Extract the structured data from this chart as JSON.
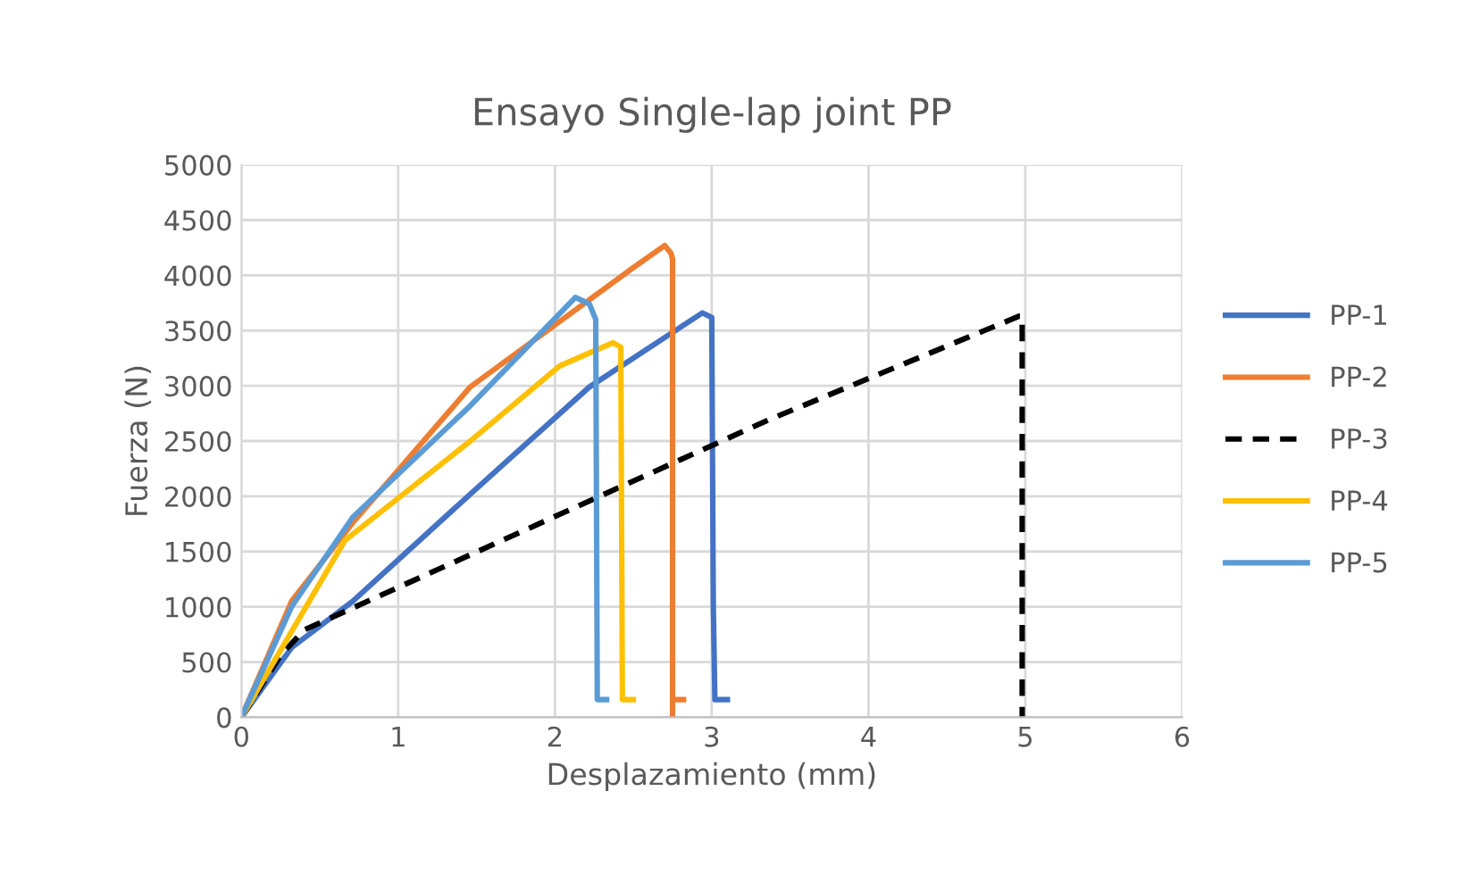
{
  "chart_data": {
    "type": "line",
    "title": "Ensayo Single-lap joint PP",
    "xlabel": "Desplazamiento (mm)",
    "ylabel": "Fuerza (N)",
    "xlim": [
      0,
      6
    ],
    "xticks": [
      0,
      1,
      2,
      3,
      4,
      5,
      6
    ],
    "ylim": [
      0,
      5000
    ],
    "yticks": [
      0,
      500,
      1000,
      1500,
      2000,
      2500,
      3000,
      3500,
      4000,
      4500,
      5000
    ],
    "grid": true,
    "legend": "right",
    "line_style": "solid",
    "series": [
      {
        "name": "PP-1",
        "color": "#4472c4",
        "x": [
          0,
          0.32,
          0.71,
          1.46,
          2.22,
          2.94,
          3.0,
          3.01,
          3.02,
          3.1
        ],
        "values": [
          0,
          630,
          1050,
          2020,
          2990,
          3660,
          3620,
          1000,
          160,
          160
        ]
      },
      {
        "name": "PP-2",
        "color": "#ed7d31",
        "x": [
          0,
          0.32,
          0.71,
          1.46,
          2.49,
          2.7,
          2.74,
          2.75,
          2.75,
          2.75,
          2.82
        ],
        "values": [
          0,
          1050,
          1760,
          2990,
          4060,
          4270,
          4200,
          4150,
          0,
          160,
          160
        ]
      },
      {
        "name": "PP-3",
        "color": "#000000",
        "line_style": "dashed",
        "x": [
          0,
          0.25,
          0.4,
          3.36,
          4.96,
          4.98,
          4.98
        ],
        "values": [
          0,
          560,
          790,
          2690,
          3630,
          3630,
          0
        ]
      },
      {
        "name": "PP-4",
        "color": "#ffc000",
        "x": [
          0,
          0.66,
          1.46,
          2.03,
          2.37,
          2.42,
          2.43,
          2.5
        ],
        "values": [
          0,
          1600,
          2500,
          3180,
          3390,
          3350,
          160,
          160
        ]
      },
      {
        "name": "PP-5",
        "color": "#5b9bd5",
        "x": [
          0,
          0.32,
          0.71,
          1.46,
          2.13,
          2.22,
          2.26,
          2.27,
          2.33
        ],
        "values": [
          0,
          1000,
          1810,
          2820,
          3800,
          3740,
          3600,
          160,
          160
        ]
      }
    ]
  }
}
